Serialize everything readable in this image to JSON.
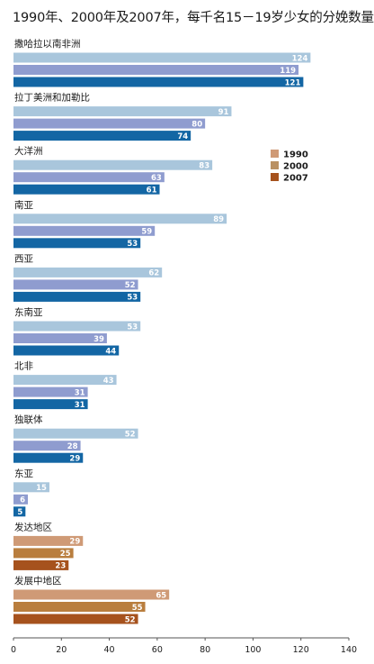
{
  "chart_data": {
    "type": "bar",
    "orientation": "horizontal",
    "title": "1990年、2000年及2007年，每千名15－19岁少女的分娩数量",
    "xlim": [
      0,
      140
    ],
    "xticks": [
      0,
      20,
      40,
      60,
      80,
      100,
      120,
      140
    ],
    "grid": false,
    "legend_position": "right, beside 大洋洲 group",
    "categories": [
      "撒哈拉以南非洲",
      "拉丁美洲和加勒比",
      "大洋洲",
      "南亚",
      "西亚",
      "东南亚",
      "北非",
      "独联体",
      "东亚",
      "发达地区",
      "发展中地区"
    ],
    "series": [
      {
        "name": "1990",
        "values": [
          124,
          91,
          83,
          89,
          62,
          53,
          43,
          52,
          15,
          29,
          65
        ]
      },
      {
        "name": "2000",
        "values": [
          119,
          80,
          63,
          59,
          52,
          39,
          31,
          28,
          6,
          25,
          55
        ]
      },
      {
        "name": "2007",
        "values": [
          121,
          74,
          61,
          53,
          53,
          44,
          31,
          29,
          5,
          23,
          52
        ]
      }
    ],
    "palette": {
      "regional": [
        "#a9c6dc",
        "#8f9ccf",
        "#1366a4"
      ],
      "aggregate": [
        "#cf9a76",
        "#b97e3e",
        "#a6521d"
      ],
      "legend": [
        "#cf9a76",
        "#b99062",
        "#a6521d"
      ]
    },
    "aggregate_categories": [
      "发达地区",
      "发展中地区"
    ]
  }
}
